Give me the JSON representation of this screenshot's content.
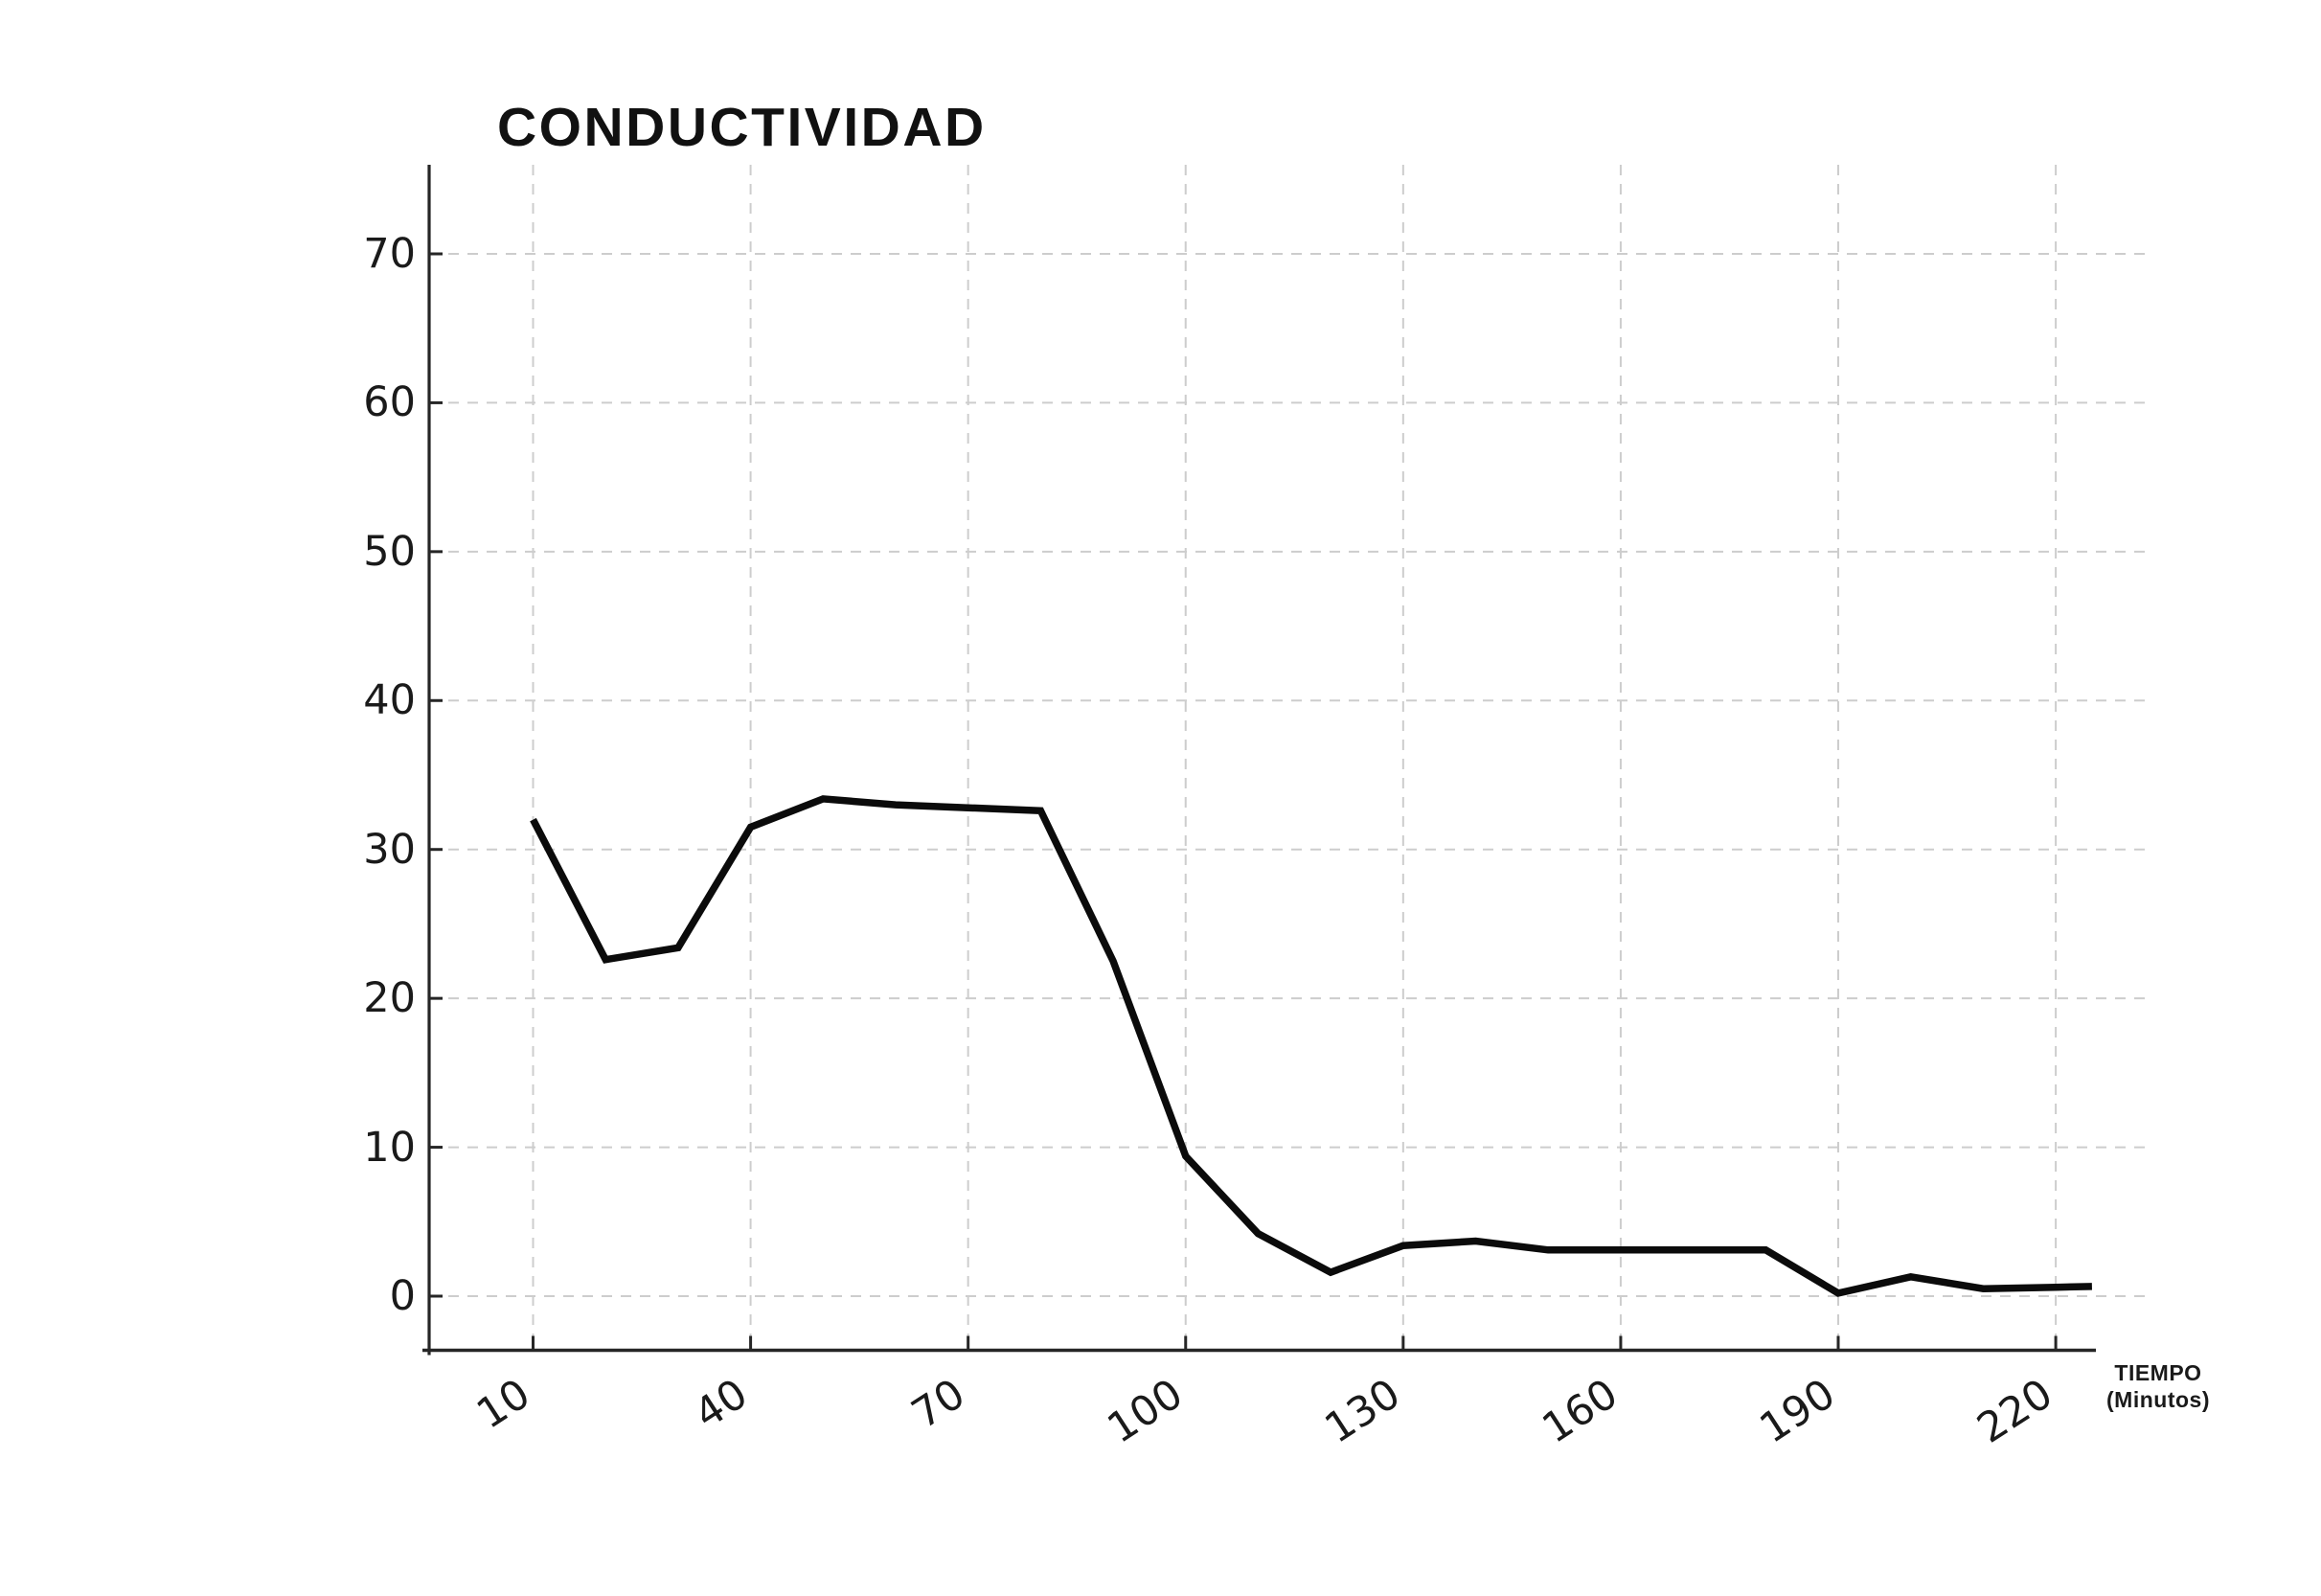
{
  "chart_data": {
    "type": "line",
    "title": "CONDUCTIVIDAD",
    "xlabel": "TIEMPO",
    "xlabel_sub": "(Minutos)",
    "x": [
      10,
      20,
      30,
      40,
      50,
      60,
      70,
      80,
      90,
      100,
      110,
      120,
      130,
      140,
      150,
      160,
      170,
      180,
      190,
      200,
      210,
      220,
      225
    ],
    "values": [
      32,
      22.6,
      23.4,
      31.5,
      33.4,
      33.0,
      32.8,
      32.6,
      22.5,
      9.4,
      4.2,
      1.6,
      3.4,
      3.7,
      3.1,
      3.1,
      3.1,
      3.1,
      0.2,
      1.3,
      0.5,
      0.6,
      0.65
    ],
    "xticks": [
      10,
      40,
      70,
      100,
      130,
      160,
      190,
      220
    ],
    "yticks": [
      0,
      10,
      20,
      30,
      40,
      50,
      60,
      70
    ],
    "xlim": [
      5,
      226
    ],
    "ylim": [
      -3.6,
      76
    ],
    "grid": true,
    "legend": false,
    "colors": {
      "line": "#0b0b0b",
      "grid": "#cdcdcd",
      "spine": "#262626",
      "text": "#1a1a1a"
    }
  }
}
